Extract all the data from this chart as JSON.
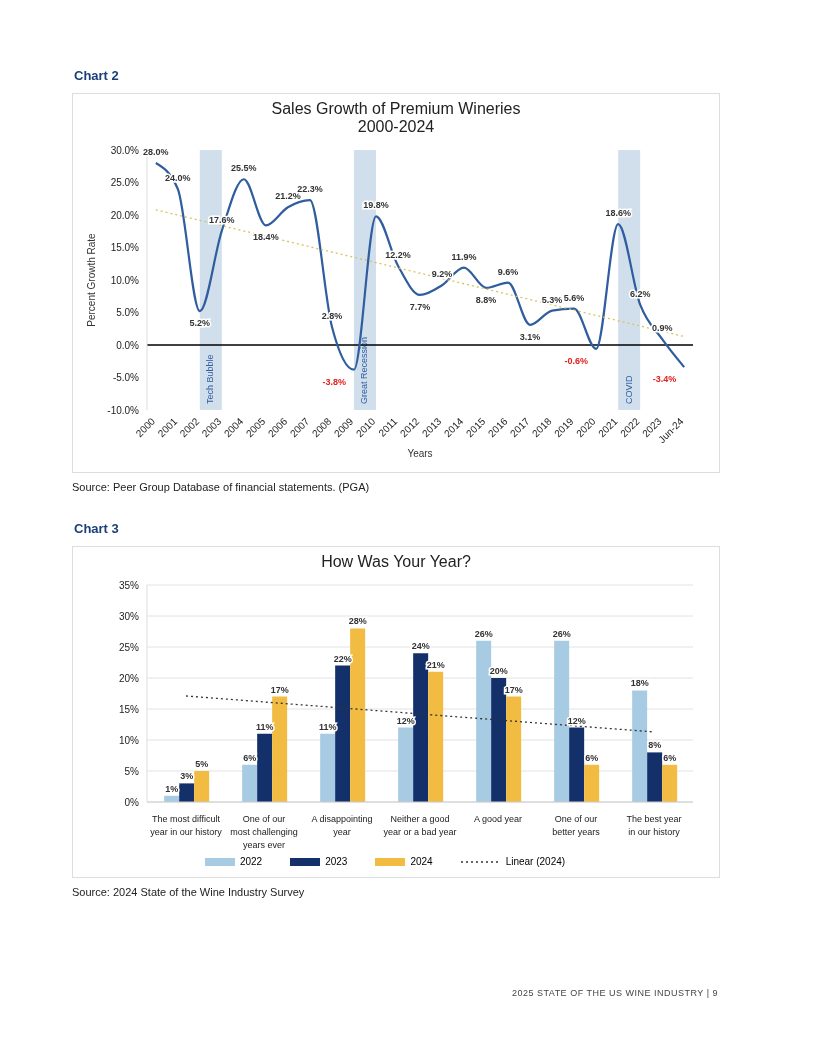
{
  "chart_data": [
    {
      "type": "line",
      "title": "Sales Growth of Premium Wineries\n2000-2024",
      "xlabel": "Years",
      "ylabel": "Percent Growth Rate",
      "categories": [
        "2000",
        "2001",
        "2002",
        "2003",
        "2004",
        "2005",
        "2006",
        "2007",
        "2008",
        "2009",
        "2010",
        "2011",
        "2012",
        "2013",
        "2014",
        "2015",
        "2016",
        "2017",
        "2018",
        "2019",
        "2020",
        "2021",
        "2022",
        "2023",
        "Jun-24"
      ],
      "series": [
        {
          "color": "#2f5d9e",
          "values": [
            28.0,
            24.0,
            5.2,
            17.6,
            25.5,
            18.4,
            21.2,
            22.3,
            2.8,
            -3.8,
            19.8,
            12.2,
            7.7,
            9.2,
            11.9,
            8.8,
            9.6,
            3.1,
            5.3,
            5.6,
            -0.6,
            18.6,
            6.2,
            0.9,
            -3.4
          ],
          "value_labels": [
            "28.0%",
            "24.0%",
            "5.2%",
            "17.6%",
            "25.5%",
            "18.4%",
            "21.2%",
            "22.3%",
            "2.8%",
            "-3.8%",
            "19.8%",
            "12.2%",
            "7.7%",
            "9.2%",
            "11.9%",
            "8.8%",
            "9.6%",
            "3.1%",
            "5.3%",
            "5.6%",
            "-0.6%",
            "18.6%",
            "6.2%",
            "0.9%",
            "-3.4%"
          ]
        },
        {
          "type": "line",
          "values": [
            20.8,
            null,
            null,
            null,
            null,
            null,
            null,
            null,
            null,
            null,
            null,
            null,
            null,
            null,
            null,
            null,
            null,
            null,
            null,
            null,
            null,
            null,
            null,
            null,
            1.3
          ],
          "color": "#d9c25a",
          "line_style": "dotted"
        }
      ],
      "ylim": [
        -10,
        30
      ],
      "yticks": [
        {
          "value": -10,
          "label": "-10.0%"
        },
        {
          "value": -5,
          "label": "-5.0%"
        },
        {
          "value": 0,
          "label": "0.0%"
        },
        {
          "value": 5,
          "label": "5.0%"
        },
        {
          "value": 10,
          "label": "10.0%"
        },
        {
          "value": 15,
          "label": "15.0%"
        },
        {
          "value": 20,
          "label": "20.0%"
        },
        {
          "value": 25,
          "label": "25.0%"
        },
        {
          "value": 30,
          "label": "30.0%"
        }
      ],
      "ref_lines": [
        {
          "axis": "y",
          "value": 0,
          "color": "#000000"
        }
      ],
      "bands": [
        {
          "axis": "x",
          "from": "2002",
          "to": "2003",
          "label": "Tech Bubble",
          "color": "#c9d9ea"
        },
        {
          "axis": "x",
          "from": "2009",
          "to": "2010",
          "label": "Great Recession",
          "color": "#c9d9ea"
        },
        {
          "axis": "x",
          "from": "2021",
          "to": "2022",
          "label": "COVID",
          "color": "#c9d9ea"
        }
      ],
      "grid": false,
      "legend": false,
      "marker": "none",
      "line_style": "solid",
      "annotations": [
        "Chart 2",
        "Source: Peer Group Database of financial statements. (PGA)"
      ]
    },
    {
      "type": "bar",
      "title": "How Was Your Year?",
      "categories": [
        "The most difficult\nyear in our history",
        "One of our\nmost challenging\nyears ever",
        "A disappointing\nyear",
        "Neither a good\nyear or a bad year",
        "A good year",
        "One of our\nbetter years",
        "The best year\nin our history"
      ],
      "series": [
        {
          "name": "2022",
          "color": "#a6cbe3",
          "values": [
            1,
            6,
            11,
            12,
            26,
            26,
            18
          ],
          "value_labels": [
            "1%",
            "6%",
            "11%",
            "12%",
            "26%",
            "26%",
            "18%"
          ]
        },
        {
          "name": "2023",
          "color": "#14306b",
          "values": [
            3,
            11,
            22,
            24,
            20,
            12,
            8
          ],
          "value_labels": [
            "3%",
            "11%",
            "22%",
            "24%",
            "20%",
            "12%",
            "8%"
          ]
        },
        {
          "name": "2024",
          "color": "#f2bc42",
          "values": [
            5,
            17,
            28,
            21,
            17,
            6,
            6
          ],
          "value_labels": [
            "5%",
            "17%",
            "28%",
            "21%",
            "17%",
            "6%",
            "6%"
          ]
        },
        {
          "name": "Linear (2024)",
          "type": "line",
          "values": [
            17.1,
            null,
            null,
            null,
            null,
            null,
            11.3
          ],
          "color": "#333333",
          "line_style": "dotted",
          "marker": "none"
        }
      ],
      "ylim": [
        0,
        35
      ],
      "yticks": [
        {
          "value": 0,
          "label": "0%"
        },
        {
          "value": 5,
          "label": "5%"
        },
        {
          "value": 10,
          "label": "10%"
        },
        {
          "value": 15,
          "label": "15%"
        },
        {
          "value": 20,
          "label": "20%"
        },
        {
          "value": 25,
          "label": "25%"
        },
        {
          "value": 30,
          "label": "30%"
        },
        {
          "value": 35,
          "label": "35%"
        }
      ],
      "grid": "y",
      "legend": "bottom",
      "annotations": [
        "Chart 3",
        "Source: 2024 State of the Wine Industry Survey",
        "2025 STATE OF THE US WINE INDUSTRY | 9"
      ]
    }
  ]
}
